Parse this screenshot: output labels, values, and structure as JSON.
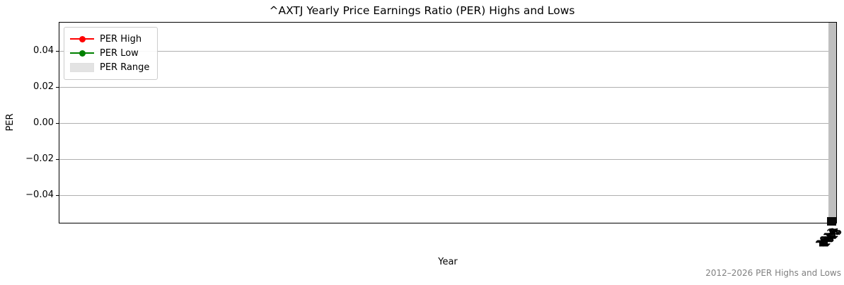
{
  "title": "^AXTJ Yearly Price Earnings Ratio (PER) Highs and Lows",
  "axes": {
    "xlabel": "Year",
    "ylabel": "PER",
    "yticks": [
      "0.04",
      "0.02",
      "0.00",
      "−0.02",
      "−0.04"
    ],
    "xticks": [
      "2012",
      "2013",
      "2014",
      "2015",
      "2016",
      "2017",
      "2018",
      "2019",
      "2020",
      "2021",
      "2022",
      "2023",
      "2024",
      "2025",
      "2026"
    ]
  },
  "legend": {
    "items": [
      {
        "label": "PER High",
        "color": "#ff0000",
        "marker": "circle-line"
      },
      {
        "label": "PER Low",
        "color": "#008000",
        "marker": "circle-line"
      },
      {
        "label": "PER Range",
        "color": "#e3e3e3",
        "marker": "patch"
      }
    ]
  },
  "caption": "2012–2026 PER Highs and Lows",
  "colors": {
    "range_bar": "#bfbfbf",
    "marker_cluster": "#0a0a0a",
    "gridline": "#b0b0b0",
    "caption_text": "#808080",
    "per_high": "#ff0000",
    "per_low": "#008000"
  },
  "chart_data": {
    "type": "line",
    "title": "^AXTJ Yearly Price Earnings Ratio (PER) Highs and Lows",
    "xlabel": "Year",
    "ylabel": "PER",
    "categories": [
      "2012",
      "2013",
      "2014",
      "2015",
      "2016",
      "2017",
      "2018",
      "2019",
      "2020",
      "2021",
      "2022",
      "2023",
      "2024",
      "2025",
      "2026"
    ],
    "series": [
      {
        "name": "PER High",
        "type": "line",
        "color": "#ff0000",
        "marker": "o",
        "values": null
      },
      {
        "name": "PER Low",
        "type": "line",
        "color": "#008000",
        "marker": "o",
        "values": null
      },
      {
        "name": "PER Range",
        "type": "area",
        "color": "#d3d3d3",
        "values": null
      }
    ],
    "ylim": [
      -0.055,
      0.055
    ],
    "yticks": [
      0.04,
      0.02,
      0.0,
      -0.02,
      -0.04
    ],
    "grid": true,
    "legend_position": "upper left",
    "annotations": [
      "2012–2026 PER Highs and Lows"
    ],
    "rendered_note": "All plotted points collapse at the right axis edge: a full-height gray range bar with a black cluster of overlapping markers at its base; x tick labels overlap into an unreadable rotated cluster"
  }
}
